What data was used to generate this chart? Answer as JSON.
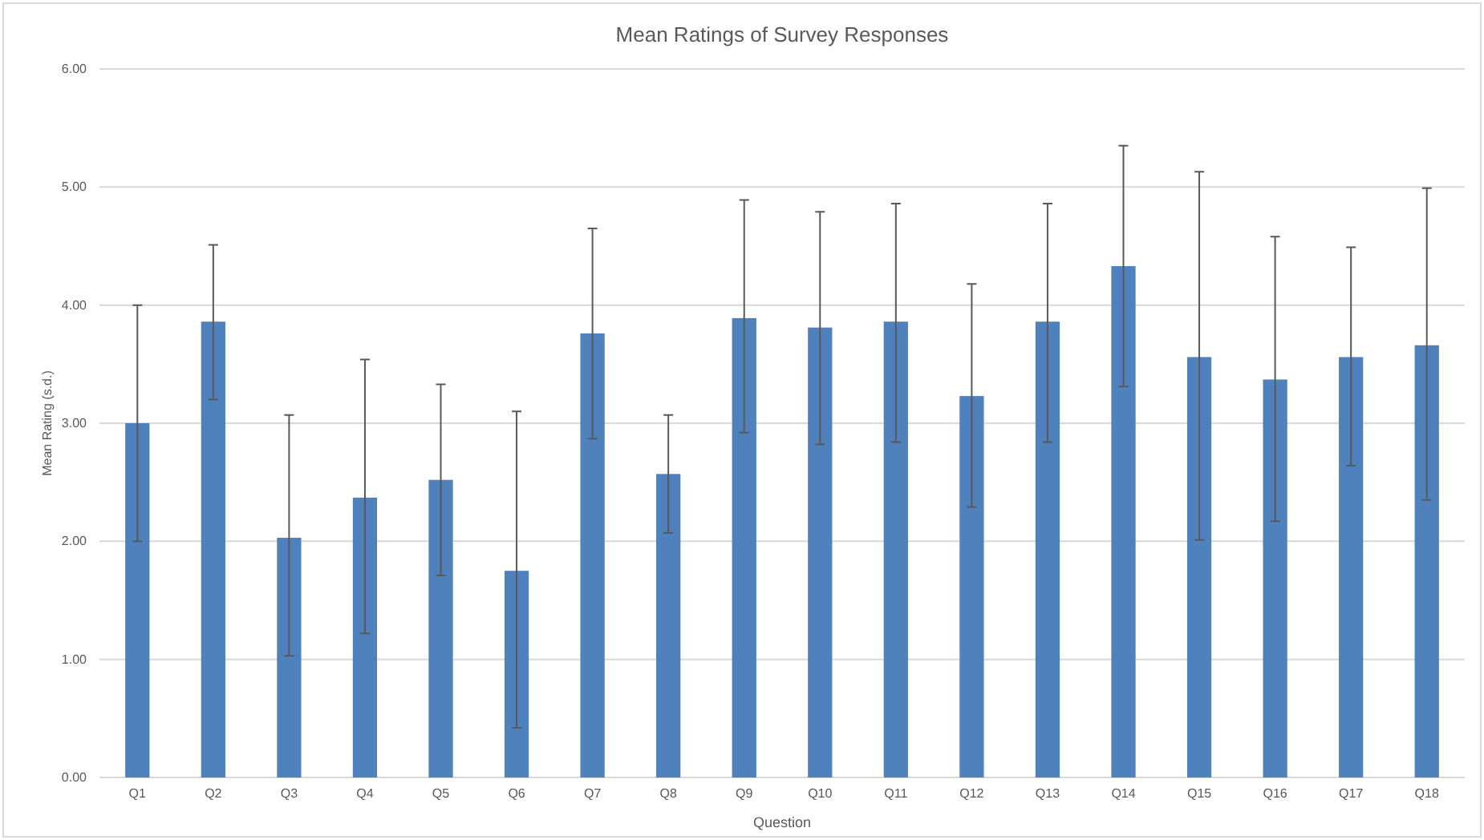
{
  "chart_data": {
    "type": "bar",
    "title": "Mean Ratings of Survey Responses",
    "xlabel": "Question",
    "ylabel": "Mean Rating (s.d.)",
    "categories": [
      "Q1",
      "Q2",
      "Q3",
      "Q4",
      "Q5",
      "Q6",
      "Q7",
      "Q8",
      "Q9",
      "Q10",
      "Q11",
      "Q12",
      "Q13",
      "Q14",
      "Q15",
      "Q16",
      "Q17",
      "Q18"
    ],
    "values": [
      3.0,
      3.86,
      2.03,
      2.37,
      2.52,
      1.75,
      3.76,
      2.57,
      3.89,
      3.81,
      3.86,
      3.23,
      3.86,
      4.33,
      3.56,
      3.37,
      3.56,
      3.66
    ],
    "errors": [
      [
        2.0,
        4.0
      ],
      [
        3.2,
        4.51
      ],
      [
        1.03,
        3.07
      ],
      [
        1.22,
        3.54
      ],
      [
        1.71,
        3.33
      ],
      [
        0.42,
        3.1
      ],
      [
        2.87,
        4.65
      ],
      [
        2.07,
        3.07
      ],
      [
        2.92,
        4.89
      ],
      [
        2.82,
        4.79
      ],
      [
        2.84,
        4.86
      ],
      [
        2.29,
        4.18
      ],
      [
        2.84,
        4.86
      ],
      [
        3.31,
        5.35
      ],
      [
        2.01,
        5.13
      ],
      [
        2.17,
        4.58
      ],
      [
        2.64,
        4.49
      ],
      [
        2.35,
        4.99
      ]
    ],
    "color": "#4f81bd",
    "ylim": [
      0,
      6
    ],
    "yticks": [
      {
        "value": 0,
        "label": "0.00"
      },
      {
        "value": 1,
        "label": "1.00"
      },
      {
        "value": 2,
        "label": "2.00"
      },
      {
        "value": 3,
        "label": "3.00"
      },
      {
        "value": 4,
        "label": "4.00"
      },
      {
        "value": 5,
        "label": "5.00"
      },
      {
        "value": 6,
        "label": "6.00"
      }
    ],
    "grid": "y"
  }
}
